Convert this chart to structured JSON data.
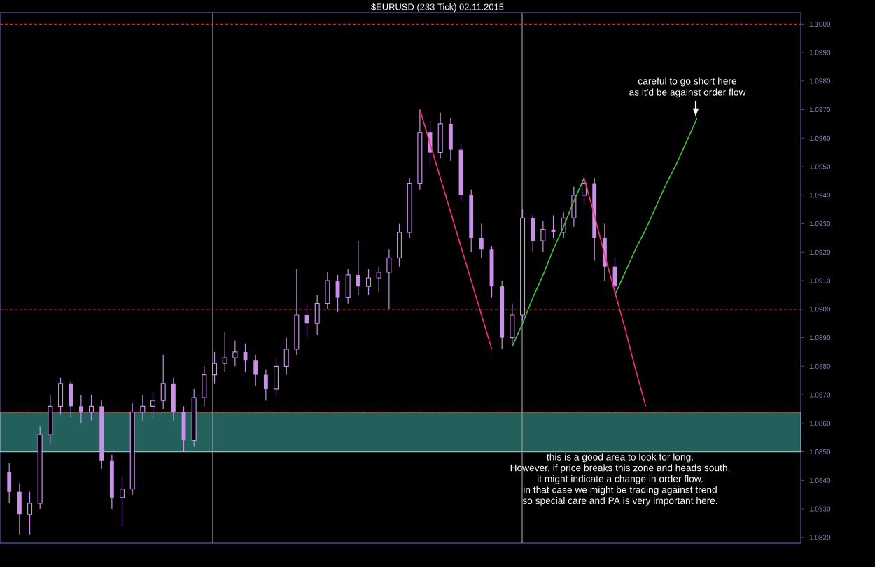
{
  "chart_data": {
    "type": "candlestick",
    "title": "$EURUSD (233 Tick) 02.11.2015",
    "categories": [
      null,
      null,
      null,
      null,
      null,
      null,
      null,
      null,
      null,
      null,
      null,
      null,
      null,
      null,
      null,
      null,
      null,
      null,
      null,
      null,
      null,
      null,
      null,
      null,
      null,
      null,
      null,
      null,
      null,
      null,
      null,
      null,
      null,
      null,
      null,
      null,
      null,
      null,
      null,
      null,
      null,
      null,
      null,
      null,
      null,
      null,
      null,
      null,
      null,
      null,
      null,
      null,
      null,
      null,
      null,
      null,
      null,
      null,
      null,
      null,
      null,
      null,
      null,
      null,
      null,
      null,
      null,
      null,
      null,
      null,
      null,
      null,
      null,
      null,
      null,
      null,
      null,
      null
    ],
    "ohlc": [
      [
        1.0843,
        1.0846,
        1.0832,
        1.0836
      ],
      [
        1.0836,
        1.0839,
        1.0821,
        1.0828
      ],
      [
        1.0828,
        1.0836,
        1.0821,
        1.0832
      ],
      [
        1.0832,
        1.0859,
        1.083,
        1.0856
      ],
      [
        1.0856,
        1.087,
        1.0853,
        1.0866
      ],
      [
        1.0866,
        1.0876,
        1.0863,
        1.0874
      ],
      [
        1.0874,
        1.0875,
        1.0862,
        1.0866
      ],
      [
        1.0866,
        1.087,
        1.086,
        1.0864
      ],
      [
        1.0864,
        1.087,
        1.0861,
        1.0866
      ],
      [
        1.0866,
        1.0868,
        1.0844,
        1.0847
      ],
      [
        1.0847,
        1.0849,
        1.083,
        1.0834
      ],
      [
        1.0834,
        1.0841,
        1.0824,
        1.0837
      ],
      [
        1.0837,
        1.0867,
        1.0835,
        1.0864
      ],
      [
        1.0864,
        1.087,
        1.0861,
        1.0866
      ],
      [
        1.0866,
        1.0871,
        1.0862,
        1.0868
      ],
      [
        1.0868,
        1.0884,
        1.0865,
        1.0874
      ],
      [
        1.0874,
        1.0876,
        1.0861,
        1.0864
      ],
      [
        1.0864,
        1.0866,
        1.085,
        1.0854
      ],
      [
        1.0854,
        1.0872,
        1.0852,
        1.0869
      ],
      [
        1.0869,
        1.088,
        1.0866,
        1.0877
      ],
      [
        1.0877,
        1.0885,
        1.0874,
        1.0881
      ],
      [
        1.0881,
        1.0892,
        1.0878,
        1.0883
      ],
      [
        1.0883,
        1.0889,
        1.088,
        1.0885
      ],
      [
        1.0885,
        1.0888,
        1.0878,
        1.0882
      ],
      [
        1.0882,
        1.0884,
        1.0873,
        1.0877
      ],
      [
        1.0877,
        1.0879,
        1.0868,
        1.0872
      ],
      [
        1.0872,
        1.0883,
        1.087,
        1.088
      ],
      [
        1.088,
        1.089,
        1.0877,
        1.0886
      ],
      [
        1.0886,
        1.0914,
        1.0884,
        1.0898
      ],
      [
        1.0898,
        1.0902,
        1.089,
        1.0895
      ],
      [
        1.0895,
        1.0905,
        1.0891,
        1.0902
      ],
      [
        1.0902,
        1.0913,
        1.09,
        1.091
      ],
      [
        1.091,
        1.0912,
        1.0899,
        1.0904
      ],
      [
        1.0904,
        1.0914,
        1.0902,
        1.0912
      ],
      [
        1.0912,
        1.0924,
        1.0905,
        1.0908
      ],
      [
        1.0908,
        1.0914,
        1.0905,
        1.0911
      ],
      [
        1.0911,
        1.0915,
        1.0906,
        1.0913
      ],
      [
        1.0913,
        1.0921,
        1.09,
        1.0918
      ],
      [
        1.0918,
        1.093,
        1.0915,
        1.0927
      ],
      [
        1.0927,
        1.0946,
        1.0925,
        1.0944
      ],
      [
        1.0944,
        1.097,
        1.0942,
        1.0962
      ],
      [
        1.0962,
        1.0966,
        1.0951,
        1.0955
      ],
      [
        1.0955,
        1.0969,
        1.0953,
        1.0965
      ],
      [
        1.0965,
        1.0967,
        1.0952,
        1.0956
      ],
      [
        1.0956,
        1.0958,
        1.0938,
        1.094
      ],
      [
        1.094,
        1.0942,
        1.092,
        1.0925
      ],
      [
        1.0925,
        1.093,
        1.0918,
        1.0921
      ],
      [
        1.0921,
        1.0922,
        1.0904,
        1.0908
      ],
      [
        1.0908,
        1.091,
        1.0886,
        1.089
      ],
      [
        1.089,
        1.0902,
        1.0887,
        1.0898
      ],
      [
        1.0898,
        1.0935,
        1.0896,
        1.0932
      ],
      [
        1.0932,
        1.0933,
        1.092,
        1.0924
      ],
      [
        1.0924,
        1.0931,
        1.092,
        1.0928
      ],
      [
        1.0928,
        1.0933,
        1.0925,
        1.0927
      ],
      [
        1.0927,
        1.0934,
        1.0925,
        1.0932
      ],
      [
        1.0932,
        1.0943,
        1.0929,
        1.094
      ],
      [
        1.094,
        1.0947,
        1.0937,
        1.0944
      ],
      [
        1.0944,
        1.0946,
        1.0917,
        1.0925
      ],
      [
        1.0925,
        1.093,
        1.091,
        1.0915
      ],
      [
        1.0915,
        1.0918,
        1.0904,
        1.0908
      ],
      null,
      null,
      null,
      null,
      null,
      null,
      null,
      null,
      null,
      null,
      null,
      null,
      null,
      null,
      null,
      null,
      null,
      null
    ],
    "color": "#c890e8",
    "series": [
      {
        "type": "line",
        "color": "#ff2d78",
        "values": [
          null,
          null,
          null,
          null,
          null,
          null,
          null,
          null,
          null,
          null,
          null,
          null,
          null,
          null,
          null,
          null,
          null,
          null,
          null,
          null,
          null,
          null,
          null,
          null,
          null,
          null,
          null,
          null,
          null,
          null,
          null,
          null,
          null,
          null,
          null,
          null,
          null,
          null,
          null,
          null,
          1.097,
          1.0958,
          1.0946,
          1.0934,
          1.0922,
          1.091,
          1.0898,
          1.0886,
          null,
          null,
          null,
          null,
          null,
          null,
          null,
          null,
          null,
          null,
          null,
          null,
          null,
          null,
          null,
          null,
          null,
          null,
          null,
          null,
          null,
          null,
          null,
          null,
          null,
          null,
          null,
          null,
          null,
          null
        ]
      },
      {
        "type": "line",
        "color": "#3ec43e",
        "values": [
          null,
          null,
          null,
          null,
          null,
          null,
          null,
          null,
          null,
          null,
          null,
          null,
          null,
          null,
          null,
          null,
          null,
          null,
          null,
          null,
          null,
          null,
          null,
          null,
          null,
          null,
          null,
          null,
          null,
          null,
          null,
          null,
          null,
          null,
          null,
          null,
          null,
          null,
          null,
          null,
          null,
          null,
          null,
          null,
          null,
          null,
          null,
          null,
          null,
          1.0887,
          1.0895,
          1.0904,
          1.0912,
          1.0921,
          1.0929,
          1.0938,
          1.0946,
          null,
          null,
          null,
          null,
          null,
          null,
          null,
          null,
          null,
          null,
          null,
          null,
          null,
          null,
          null,
          null,
          null,
          null,
          null,
          null,
          null
        ]
      },
      {
        "type": "line",
        "color": "#ff2d78",
        "values": [
          null,
          null,
          null,
          null,
          null,
          null,
          null,
          null,
          null,
          null,
          null,
          null,
          null,
          null,
          null,
          null,
          null,
          null,
          null,
          null,
          null,
          null,
          null,
          null,
          null,
          null,
          null,
          null,
          null,
          null,
          null,
          null,
          null,
          null,
          null,
          null,
          null,
          null,
          null,
          null,
          null,
          null,
          null,
          null,
          null,
          null,
          null,
          null,
          null,
          null,
          null,
          null,
          null,
          null,
          null,
          null,
          1.0946,
          1.0933,
          1.0919,
          1.0906,
          1.0893,
          1.0879,
          1.0866,
          null,
          null,
          null,
          null,
          null,
          null,
          null,
          null,
          null,
          null,
          null,
          null,
          null,
          null,
          null
        ]
      },
      {
        "type": "line",
        "color": "#3ec43e",
        "values": [
          null,
          null,
          null,
          null,
          null,
          null,
          null,
          null,
          null,
          null,
          null,
          null,
          null,
          null,
          null,
          null,
          null,
          null,
          null,
          null,
          null,
          null,
          null,
          null,
          null,
          null,
          null,
          null,
          null,
          null,
          null,
          null,
          null,
          null,
          null,
          null,
          null,
          null,
          null,
          null,
          null,
          null,
          null,
          null,
          null,
          null,
          null,
          null,
          null,
          null,
          null,
          null,
          null,
          null,
          null,
          null,
          null,
          null,
          null,
          1.0905,
          1.0913,
          1.0921,
          1.0928,
          1.0936,
          1.0944,
          1.0951,
          1.0959,
          1.0967,
          null,
          null,
          null,
          null,
          null,
          null,
          null,
          null,
          null,
          null
        ]
      }
    ],
    "ref_lines": [
      {
        "axis": "y",
        "value": 1.1,
        "color": "#d02828",
        "line_style": "dashed"
      },
      {
        "axis": "y",
        "value": 1.09,
        "color": "#d02828",
        "line_style": "dashed"
      },
      {
        "axis": "y",
        "value": 1.0864,
        "color": "#d02828",
        "line_style": "dashed"
      }
    ],
    "bands": [
      {
        "axis": "y",
        "from": 1.085,
        "to": 1.0864,
        "color": "#235f5b"
      }
    ],
    "annotations": [
      "careful to go short here",
      "as it'd be against order flow",
      "this is a good area to look for long.",
      "However, if price breaks this zone and heads south,",
      "it might indicate a change in order flow.",
      "in that case we might be trading against trend",
      "so special care and PA is very important here."
    ],
    "ylim": [
      1.0818,
      1.1004
    ],
    "yticks": [
      {
        "value": 1.082,
        "label": "1.0820"
      },
      {
        "value": 1.083,
        "label": "1.0830"
      },
      {
        "value": 1.084,
        "label": "1.0840"
      },
      {
        "value": 1.085,
        "label": "1.0850"
      },
      {
        "value": 1.086,
        "label": "1.0860"
      },
      {
        "value": 1.087,
        "label": "1.0870"
      },
      {
        "value": 1.088,
        "label": "1.0880"
      },
      {
        "value": 1.089,
        "label": "1.0890"
      },
      {
        "value": 1.09,
        "label": "1.0900"
      },
      {
        "value": 1.091,
        "label": "1.0910"
      },
      {
        "value": 1.092,
        "label": "1.0920"
      },
      {
        "value": 1.093,
        "label": "1.0930"
      },
      {
        "value": 1.094,
        "label": "1.0940"
      },
      {
        "value": 1.095,
        "label": "1.0950"
      },
      {
        "value": 1.096,
        "label": "1.0960"
      },
      {
        "value": 1.097,
        "label": "1.0970"
      },
      {
        "value": 1.098,
        "label": "1.0980"
      },
      {
        "value": 1.099,
        "label": "1.0990"
      },
      {
        "value": 1.1,
        "label": "1.1000"
      }
    ],
    "tick_labels": "y"
  }
}
